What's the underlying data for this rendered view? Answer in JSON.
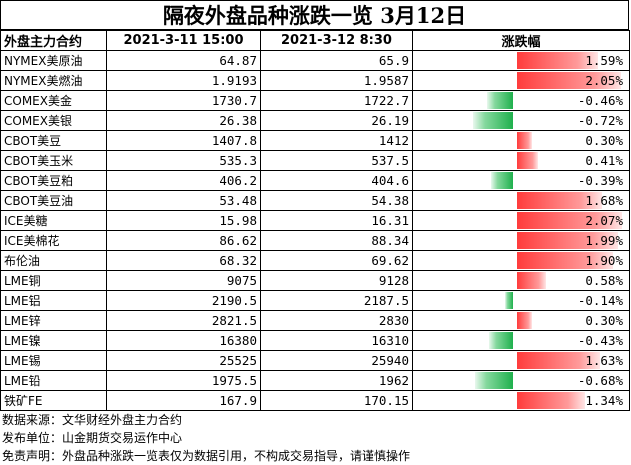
{
  "title": "隔夜外盘品种涨跌一览 3月12日",
  "headers": [
    "外盘主力合约",
    "2021-3-11 15:00",
    "2021-3-12 8:30",
    "涨跌幅"
  ],
  "rows": [
    {
      "name": "NYMEX美原油",
      "prev": "64.87",
      "curr": "65.9",
      "change": "1.59%",
      "pct": 1.59
    },
    {
      "name": "NYMEX美燃油",
      "prev": "1.9193",
      "curr": "1.9587",
      "change": "2.05%",
      "pct": 2.05
    },
    {
      "name": "COMEX美金",
      "prev": "1730.7",
      "curr": "1722.7",
      "change": "-0.46%",
      "pct": -0.46
    },
    {
      "name": "COMEX美银",
      "prev": "26.38",
      "curr": "26.19",
      "change": "-0.72%",
      "pct": -0.72
    },
    {
      "name": "CBOT美豆",
      "prev": "1407.8",
      "curr": "1412",
      "change": "0.30%",
      "pct": 0.3
    },
    {
      "name": "CBOT美玉米",
      "prev": "535.3",
      "curr": "537.5",
      "change": "0.41%",
      "pct": 0.41
    },
    {
      "name": "CBOT美豆粕",
      "prev": "406.2",
      "curr": "404.6",
      "change": "-0.39%",
      "pct": -0.39
    },
    {
      "name": "CBOT美豆油",
      "prev": "53.48",
      "curr": "54.38",
      "change": "1.68%",
      "pct": 1.68
    },
    {
      "name": "ICE美糖",
      "prev": "15.98",
      "curr": "16.31",
      "change": "2.07%",
      "pct": 2.07
    },
    {
      "name": "ICE美棉花",
      "prev": "86.62",
      "curr": "88.34",
      "change": "1.99%",
      "pct": 1.99
    },
    {
      "name": "布伦油",
      "prev": "68.32",
      "curr": "69.62",
      "change": "1.90%",
      "pct": 1.9
    },
    {
      "name": "LME铜",
      "prev": "9075",
      "curr": "9128",
      "change": "0.58%",
      "pct": 0.58
    },
    {
      "name": "LME铝",
      "prev": "2190.5",
      "curr": "2187.5",
      "change": "-0.14%",
      "pct": -0.14
    },
    {
      "name": "LME锌",
      "prev": "2821.5",
      "curr": "2830",
      "change": "0.30%",
      "pct": 0.3
    },
    {
      "name": "LME镍",
      "prev": "16380",
      "curr": "16310",
      "change": "-0.43%",
      "pct": -0.43
    },
    {
      "name": "LME锡",
      "prev": "25525",
      "curr": "25940",
      "change": "1.63%",
      "pct": 1.63
    },
    {
      "name": "LME铅",
      "prev": "1975.5",
      "curr": "1962",
      "change": "-0.68%",
      "pct": -0.68
    },
    {
      "name": "铁矿FE",
      "prev": "167.9",
      "curr": "170.15",
      "change": "1.34%",
      "pct": 1.34
    }
  ],
  "footer": [
    "数据来源：文华财经外盘主力合约",
    "发布单位：山金期货交易运作中心",
    "免责声明：外盘品种涨跌一览表仅为数据引用，不构成交易指导，请谨慎操作"
  ],
  "colors": {
    "positive": "#ff3c3c",
    "negative": "#1fb04d"
  }
}
